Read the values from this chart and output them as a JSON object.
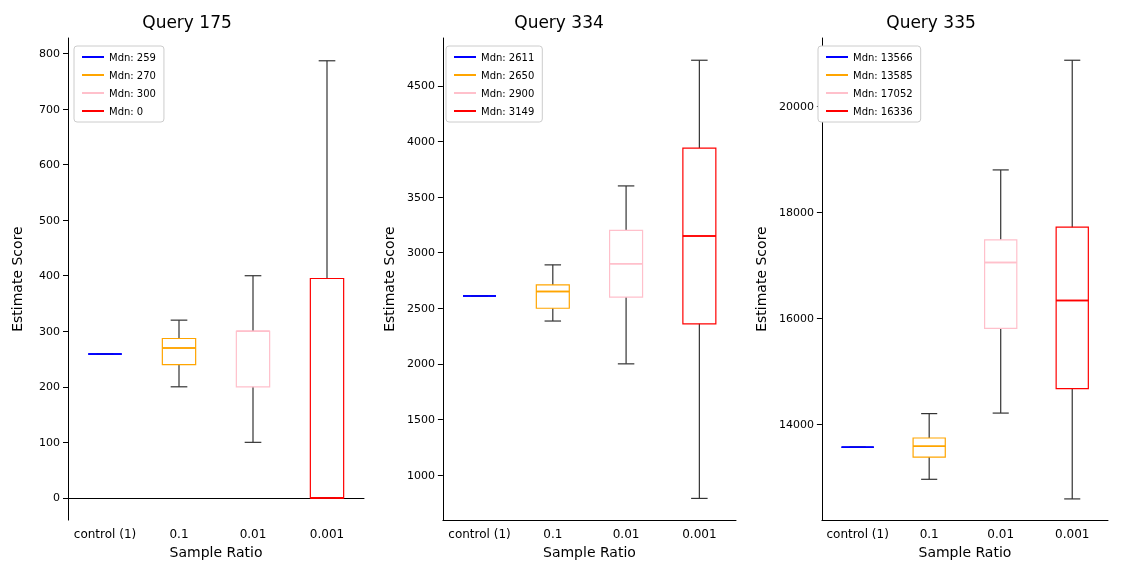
{
  "chart_data": [
    {
      "type": "box",
      "title": "Query 175",
      "xlabel": "Sample Ratio",
      "ylabel": "Estimate Score",
      "categories": [
        "control (1)",
        "0.1",
        "0.01",
        "0.001"
      ],
      "ylim": [
        -40,
        828
      ],
      "yticks": [
        0,
        100,
        200,
        300,
        400,
        500,
        600,
        700,
        800
      ],
      "grid": false,
      "legend": "top left",
      "series": [
        {
          "name": "Mdn: 259",
          "color": "#0000ff",
          "boxes": [
            {
              "low": 259,
              "q1": 259,
              "median": 259,
              "q3": 259,
              "high": 259
            },
            null,
            null,
            null
          ]
        },
        {
          "name": "Mdn: 270",
          "color": "#ffa500",
          "boxes": [
            null,
            {
              "low": 200,
              "q1": 240,
              "median": 270,
              "q3": 287,
              "high": 320
            },
            null,
            null
          ]
        },
        {
          "name": "Mdn: 300",
          "color": "#ffc0cb",
          "boxes": [
            null,
            null,
            {
              "low": 100,
              "q1": 200,
              "median": 300,
              "q3": 300,
              "high": 400
            },
            null
          ]
        },
        {
          "name": "Mdn: 0",
          "color": "#ff0000",
          "boxes": [
            null,
            null,
            null,
            {
              "low": 0,
              "q1": 0,
              "median": 0,
              "q3": 395,
              "high": 787
            }
          ]
        }
      ]
    },
    {
      "type": "box",
      "title": "Query 334",
      "xlabel": "Sample Ratio",
      "ylabel": "Estimate Score",
      "categories": [
        "control (1)",
        "0.1",
        "0.01",
        "0.001"
      ],
      "ylim": [
        595,
        4930
      ],
      "yticks": [
        1000,
        1500,
        2000,
        2500,
        3000,
        3500,
        4000,
        4500
      ],
      "grid": false,
      "legend": "top left",
      "series": [
        {
          "name": "Mdn: 2611",
          "color": "#0000ff",
          "boxes": [
            {
              "low": 2611,
              "q1": 2611,
              "median": 2611,
              "q3": 2611,
              "high": 2611
            },
            null,
            null,
            null
          ]
        },
        {
          "name": "Mdn: 2650",
          "color": "#ffa500",
          "boxes": [
            null,
            {
              "low": 2385,
              "q1": 2500,
              "median": 2650,
              "q3": 2710,
              "high": 2890
            },
            null,
            null
          ]
        },
        {
          "name": "Mdn: 2900",
          "color": "#ffc0cb",
          "boxes": [
            null,
            null,
            {
              "low": 2000,
              "q1": 2600,
              "median": 2900,
              "q3": 3200,
              "high": 3600
            },
            null
          ]
        },
        {
          "name": "Mdn: 3149",
          "color": "#ff0000",
          "boxes": [
            null,
            null,
            null,
            {
              "low": 790,
              "q1": 2360,
              "median": 3149,
              "q3": 3940,
              "high": 4730
            }
          ]
        }
      ]
    },
    {
      "type": "box",
      "title": "Query 335",
      "xlabel": "Sample Ratio",
      "ylabel": "Estimate Score",
      "categories": [
        "control (1)",
        "0.1",
        "0.01",
        "0.001"
      ],
      "ylim": [
        12190,
        21290
      ],
      "yticks": [
        14000,
        16000,
        18000,
        20000
      ],
      "grid": false,
      "legend": "top left",
      "series": [
        {
          "name": "Mdn: 13566",
          "color": "#0000ff",
          "boxes": [
            {
              "low": 13566,
              "q1": 13566,
              "median": 13566,
              "q3": 13566,
              "high": 13566
            },
            null,
            null,
            null
          ]
        },
        {
          "name": "Mdn: 13585",
          "color": "#ffa500",
          "boxes": [
            null,
            {
              "low": 12960,
              "q1": 13380,
              "median": 13585,
              "q3": 13740,
              "high": 14200
            },
            null,
            null
          ]
        },
        {
          "name": "Mdn: 17052",
          "color": "#ffc0cb",
          "boxes": [
            null,
            null,
            {
              "low": 14210,
              "q1": 15810,
              "median": 17052,
              "q3": 17480,
              "high": 18800
            },
            null
          ]
        },
        {
          "name": "Mdn: 16336",
          "color": "#ff0000",
          "boxes": [
            null,
            null,
            null,
            {
              "low": 12590,
              "q1": 14670,
              "median": 16336,
              "q3": 17720,
              "high": 20870
            }
          ]
        }
      ]
    }
  ]
}
